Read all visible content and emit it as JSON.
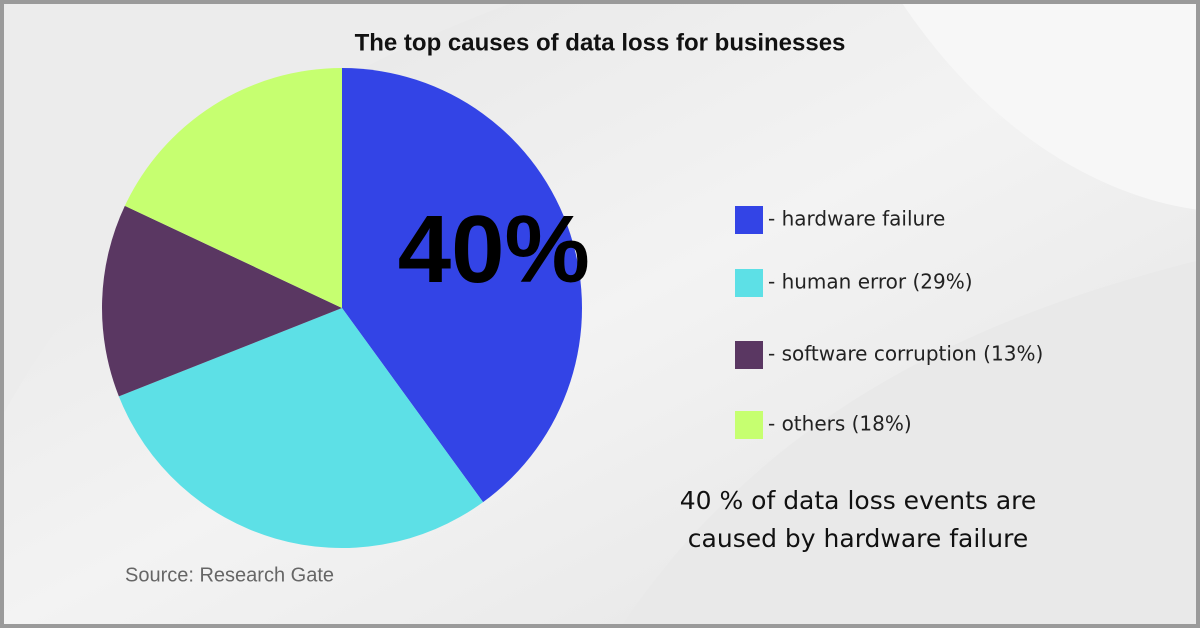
{
  "chart_data": {
    "type": "pie",
    "title": "The top causes of data loss for businesses",
    "categories": [
      "- hardware failure",
      "- human error (29%)",
      "- software corruption (13%)",
      "- others (18%)"
    ],
    "values": [
      40,
      29,
      13,
      18
    ],
    "value_labels": [
      "40%",
      null,
      null,
      null
    ],
    "colors": [
      "#3344e6",
      "#5de0e6",
      "#5a3762",
      "#c6ff70"
    ],
    "annotation": [
      "40 % of data loss events are",
      "caused by hardware failure"
    ],
    "source": "Source:  Research Gate"
  }
}
